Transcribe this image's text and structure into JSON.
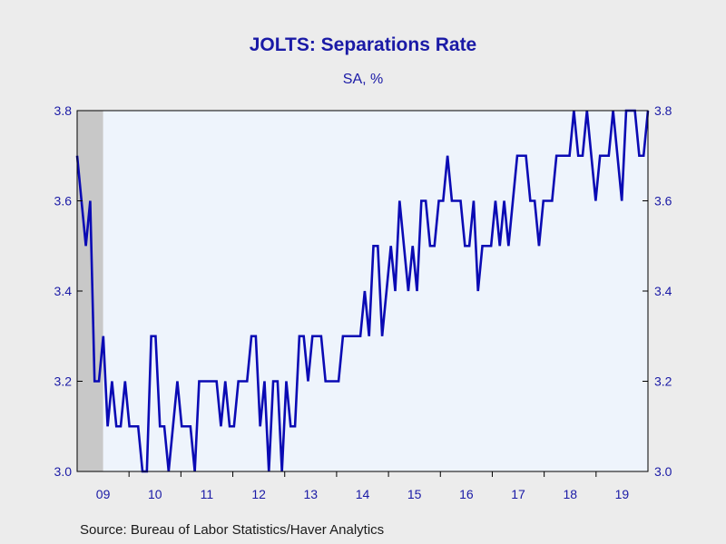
{
  "colors": {
    "background": "#ececec",
    "plot_background": "#eef4fc",
    "line": "#0a0ab4",
    "text": "#1a1aa6",
    "recession_shade": "#c8c8c8"
  },
  "chart_data": {
    "type": "line",
    "title": "JOLTS: Separations Rate",
    "subtitle": "SA, %",
    "source": "Source:  Bureau of Labor Statistics/Haver Analytics",
    "ylim": [
      3.0,
      3.8
    ],
    "y_ticks": [
      "3.0",
      "3.2",
      "3.4",
      "3.6",
      "3.8"
    ],
    "y_axis_both_sides": true,
    "x_start": "2009-01",
    "x_end": "2019-12",
    "x_tick_labels": [
      "09",
      "10",
      "11",
      "12",
      "13",
      "14",
      "15",
      "16",
      "17",
      "18",
      "19"
    ],
    "recession_shading": {
      "start": "2009-01",
      "end": "2009-06"
    },
    "series": [
      {
        "frequency": "monthly",
        "start": "2009-01",
        "values": [
          3.7,
          3.6,
          3.5,
          3.6,
          3.2,
          3.2,
          3.3,
          3.1,
          3.2,
          3.1,
          3.1,
          3.2,
          3.1,
          3.1,
          3.1,
          3.0,
          3.0,
          3.3,
          3.3,
          3.1,
          3.1,
          3.0,
          3.1,
          3.2,
          3.1,
          3.1,
          3.1,
          3.0,
          3.2,
          3.2,
          3.2,
          3.2,
          3.2,
          3.1,
          3.2,
          3.1,
          3.1,
          3.2,
          3.2,
          3.2,
          3.3,
          3.3,
          3.1,
          3.2,
          3.0,
          3.2,
          3.2,
          3.0,
          3.2,
          3.1,
          3.1,
          3.3,
          3.3,
          3.2,
          3.3,
          3.3,
          3.3,
          3.2,
          3.2,
          3.2,
          3.2,
          3.3,
          3.3,
          3.3,
          3.3,
          3.3,
          3.4,
          3.3,
          3.5,
          3.5,
          3.3,
          3.4,
          3.5,
          3.4,
          3.6,
          3.5,
          3.4,
          3.5,
          3.4,
          3.6,
          3.6,
          3.5,
          3.5,
          3.6,
          3.6,
          3.7,
          3.6,
          3.6,
          3.6,
          3.5,
          3.5,
          3.6,
          3.4,
          3.5,
          3.5,
          3.5,
          3.6,
          3.5,
          3.6,
          3.5,
          3.6,
          3.7,
          3.7,
          3.7,
          3.6,
          3.6,
          3.5,
          3.6,
          3.6,
          3.6,
          3.7,
          3.7,
          3.7,
          3.7,
          3.8,
          3.7,
          3.7,
          3.8,
          3.7,
          3.6,
          3.7,
          3.7,
          3.7,
          3.8,
          3.7,
          3.6,
          3.8,
          3.8,
          3.8,
          3.7,
          3.7,
          3.8
        ]
      }
    ]
  }
}
